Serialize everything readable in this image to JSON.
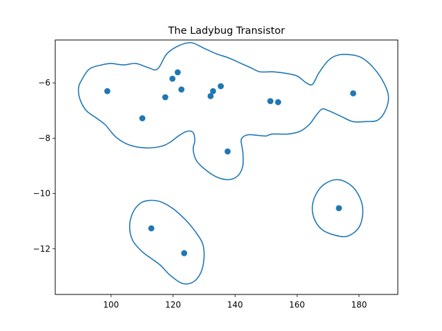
{
  "chart_data": {
    "type": "scatter",
    "title": "The Ladybug Transistor",
    "xlabel": "",
    "ylabel": "",
    "xlim": [
      82,
      192.5
    ],
    "ylim": [
      -13.65,
      -4.45
    ],
    "x_ticks": [
      100,
      120,
      140,
      160,
      180
    ],
    "y_ticks": [
      -6,
      -8,
      -10,
      -12
    ],
    "grid": false,
    "colors": {
      "accent": "#1f77b4"
    },
    "points": [
      {
        "x": 98.8,
        "y": -6.3
      },
      {
        "x": 110.1,
        "y": -7.28
      },
      {
        "x": 117.5,
        "y": -6.52
      },
      {
        "x": 119.8,
        "y": -5.85
      },
      {
        "x": 121.5,
        "y": -5.62
      },
      {
        "x": 122.7,
        "y": -6.24
      },
      {
        "x": 132.1,
        "y": -6.48
      },
      {
        "x": 132.9,
        "y": -6.3
      },
      {
        "x": 135.4,
        "y": -6.12
      },
      {
        "x": 137.6,
        "y": -8.48
      },
      {
        "x": 151.4,
        "y": -6.66
      },
      {
        "x": 153.9,
        "y": -6.7
      },
      {
        "x": 178.1,
        "y": -6.38
      },
      {
        "x": 173.5,
        "y": -10.53
      },
      {
        "x": 113.0,
        "y": -11.26
      },
      {
        "x": 123.6,
        "y": -12.16
      }
    ],
    "contours": [
      [
        [
          104,
          -5.35
        ],
        [
          108,
          -5.3
        ],
        [
          112,
          -5.45
        ],
        [
          115,
          -5.5
        ],
        [
          118,
          -4.95
        ],
        [
          122,
          -4.65
        ],
        [
          126,
          -4.55
        ],
        [
          130,
          -4.75
        ],
        [
          134,
          -4.95
        ],
        [
          138,
          -5.1
        ],
        [
          142,
          -5.3
        ],
        [
          145,
          -5.45
        ],
        [
          148,
          -5.6
        ],
        [
          152,
          -5.6
        ],
        [
          156,
          -5.65
        ],
        [
          160,
          -5.75
        ],
        [
          163,
          -6.0
        ],
        [
          165,
          -6.05
        ],
        [
          167,
          -5.65
        ],
        [
          170,
          -5.2
        ],
        [
          173,
          -5.0
        ],
        [
          177,
          -4.98
        ],
        [
          181,
          -5.1
        ],
        [
          185,
          -5.5
        ],
        [
          188,
          -6.0
        ],
        [
          189.5,
          -6.5
        ],
        [
          188.5,
          -7.0
        ],
        [
          186,
          -7.35
        ],
        [
          182,
          -7.4
        ],
        [
          178,
          -7.4
        ],
        [
          174,
          -7.2
        ],
        [
          170,
          -7.0
        ],
        [
          168,
          -6.95
        ],
        [
          166,
          -7.2
        ],
        [
          164,
          -7.5
        ],
        [
          161,
          -7.75
        ],
        [
          157,
          -7.85
        ],
        [
          152,
          -7.85
        ],
        [
          150,
          -7.92
        ],
        [
          147.5,
          -7.9
        ],
        [
          144,
          -7.88
        ],
        [
          142,
          -8.05
        ],
        [
          142.5,
          -8.5
        ],
        [
          142.5,
          -9.0
        ],
        [
          141,
          -9.35
        ],
        [
          138,
          -9.5
        ],
        [
          134,
          -9.4
        ],
        [
          130,
          -9.1
        ],
        [
          127.5,
          -8.8
        ],
        [
          126.5,
          -8.4
        ],
        [
          127,
          -8.1
        ],
        [
          126.5,
          -7.8
        ],
        [
          124.5,
          -7.75
        ],
        [
          122,
          -7.9
        ],
        [
          119,
          -8.15
        ],
        [
          116,
          -8.3
        ],
        [
          111,
          -8.35
        ],
        [
          106,
          -8.25
        ],
        [
          102,
          -8.0
        ],
        [
          99.5,
          -7.7
        ],
        [
          98,
          -7.5
        ],
        [
          95,
          -7.25
        ],
        [
          92,
          -7.0
        ],
        [
          90,
          -6.6
        ],
        [
          89.5,
          -6.2
        ],
        [
          90.5,
          -5.9
        ],
        [
          93,
          -5.5
        ],
        [
          97,
          -5.35
        ],
        [
          100,
          -5.3
        ]
      ],
      [
        [
          172.5,
          -9.5
        ],
        [
          176,
          -9.6
        ],
        [
          179,
          -9.9
        ],
        [
          181,
          -10.4
        ],
        [
          181,
          -10.9
        ],
        [
          179.5,
          -11.3
        ],
        [
          176,
          -11.55
        ],
        [
          172,
          -11.5
        ],
        [
          168,
          -11.3
        ],
        [
          165.5,
          -10.9
        ],
        [
          165,
          -10.4
        ],
        [
          166.5,
          -9.95
        ],
        [
          169,
          -9.65
        ]
      ],
      [
        [
          112.5,
          -10.25
        ],
        [
          116,
          -10.3
        ],
        [
          120,
          -10.55
        ],
        [
          124,
          -10.95
        ],
        [
          127,
          -11.35
        ],
        [
          129.5,
          -11.8
        ],
        [
          130,
          -12.3
        ],
        [
          129,
          -12.85
        ],
        [
          126.5,
          -13.2
        ],
        [
          123,
          -13.25
        ],
        [
          119,
          -12.95
        ],
        [
          116,
          -12.6
        ],
        [
          113,
          -12.35
        ],
        [
          110,
          -12.1
        ],
        [
          107,
          -11.7
        ],
        [
          106,
          -11.2
        ],
        [
          107,
          -10.7
        ],
        [
          109.5,
          -10.35
        ]
      ]
    ]
  }
}
